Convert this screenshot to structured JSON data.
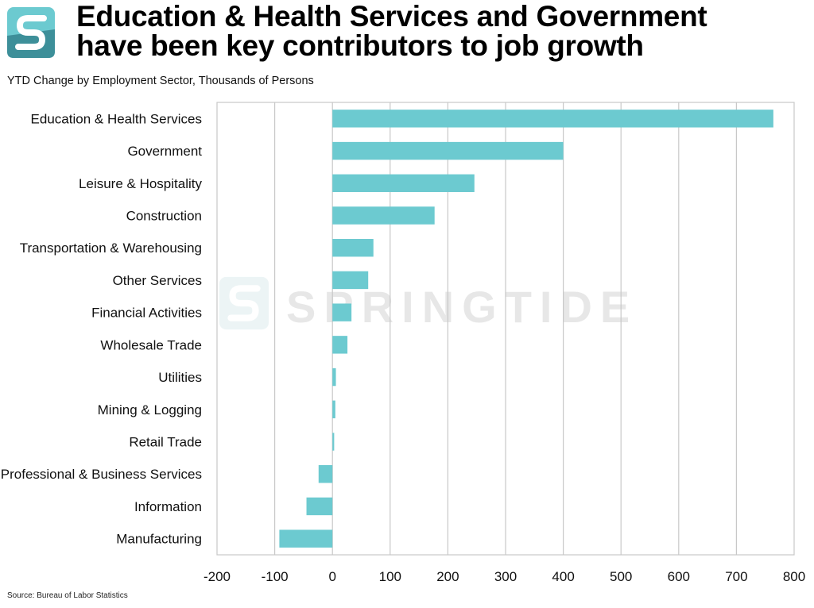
{
  "header": {
    "title_line1": "Education & Health Services and Government",
    "title_line2": "have been key contributors to job growth",
    "subtitle": "YTD Change by Employment Sector, Thousands of Persons"
  },
  "footer": {
    "source": "Source: Bureau of Labor Statistics"
  },
  "watermark": {
    "text": "SPRINGTIDE"
  },
  "colors": {
    "bar": "#6ccad0",
    "grid": "#c8c8c8",
    "logo_light": "#6ccad0",
    "logo_dark": "#3d8f99"
  },
  "chart_data": {
    "type": "bar",
    "orientation": "horizontal",
    "title": "YTD Change by Employment Sector, Thousands of Persons",
    "categories": [
      "Education & Health Services",
      "Government",
      "Leisure & Hospitality",
      "Construction",
      "Transportation & Warehousing",
      "Other Services",
      "Financial Activities",
      "Wholesale Trade",
      "Utilities",
      "Mining & Logging",
      "Retail Trade",
      "Professional & Business Services",
      "Information",
      "Manufacturing"
    ],
    "values": [
      764,
      400,
      246,
      177,
      71,
      62,
      33,
      26,
      6,
      5,
      3,
      -24,
      -45,
      -92
    ],
    "xlim": [
      -200,
      800
    ],
    "xticks": [
      -200,
      -100,
      0,
      100,
      200,
      300,
      400,
      500,
      600,
      700,
      800
    ],
    "grid": "vertical",
    "legend": "none"
  }
}
